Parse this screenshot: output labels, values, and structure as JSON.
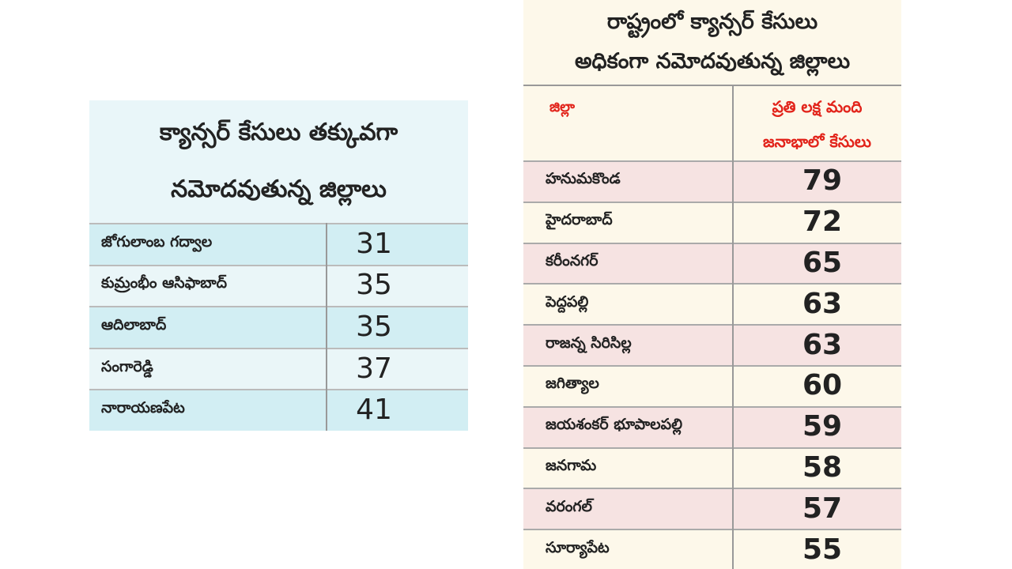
{
  "left_table": {
    "title_lines": [
      "క్యాన్సర్ కేసులు తక్కువగా",
      "నమోదవుతున్న జిల్లాలు"
    ],
    "rows": [
      [
        "జోగులాంబ గద్వాల",
        31
      ],
      [
        "కుమ్రంభీం ఆసిఫాబాద్",
        35
      ],
      [
        "ఆదిలాబాద్",
        35
      ],
      [
        "సంగారెడ్డి",
        37
      ],
      [
        "నారాయణపేట",
        41
      ]
    ]
  },
  "right_table": {
    "title_lines": [
      "రాష్ట్రంలో క్యాన్సర్ కేసులు",
      "అధికంగా నమోదవుతున్న జిల్లాలు"
    ],
    "header": [
      "జిల్లా",
      [
        "ప్రతి లక్ష మంది",
        "జనాభాలో కేసులు"
      ]
    ],
    "rows": [
      [
        "హనుమకొండ",
        79
      ],
      [
        "హైదరాబాద్",
        72
      ],
      [
        "కరీంనగర్",
        65
      ],
      [
        "పెద్దపల్లి",
        63
      ],
      [
        "రాజన్న సిరిసిల్ల",
        63
      ],
      [
        "జగిత్యాల",
        60
      ],
      [
        "జయశంకర్ భూపాలపల్లి",
        59
      ],
      [
        "జనగామ",
        58
      ],
      [
        "వరంగల్",
        57
      ],
      [
        "సూర్యాపేట",
        55
      ]
    ]
  }
}
